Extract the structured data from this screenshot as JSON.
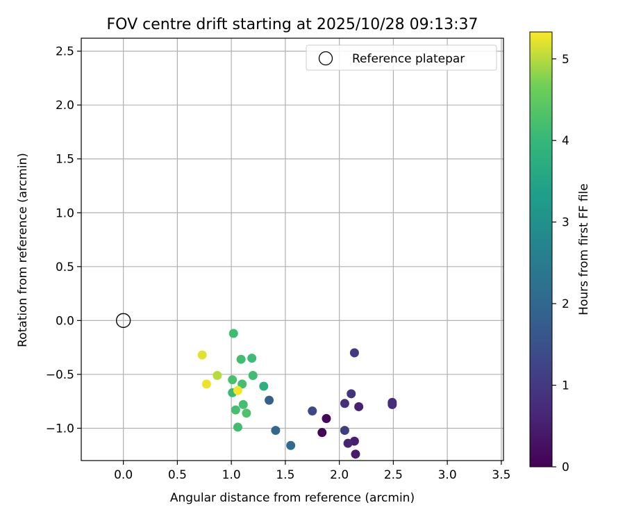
{
  "chart_data": {
    "type": "scatter",
    "title": "FOV centre drift starting at 2025/10/28 09:13:37",
    "xlabel": "Angular distance from reference (arcmin)",
    "ylabel": "Rotation from reference (arcmin)",
    "xlim": [
      -0.39,
      3.52
    ],
    "ylim": [
      -1.3,
      2.62
    ],
    "xticks": [
      0.0,
      0.5,
      1.0,
      1.5,
      2.0,
      2.5,
      3.0,
      3.5
    ],
    "xtick_labels": [
      "0.0",
      "0.5",
      "1.0",
      "1.5",
      "2.0",
      "2.5",
      "3.0",
      "3.5"
    ],
    "yticks": [
      -1.0,
      -0.5,
      0.0,
      0.5,
      1.0,
      1.5,
      2.0,
      2.5
    ],
    "ytick_labels": [
      "−1.0",
      "−0.5",
      "0.0",
      "0.5",
      "1.0",
      "1.5",
      "2.0",
      "2.5"
    ],
    "grid": true,
    "legend": {
      "position": "top-right",
      "entries": [
        "Reference platepar"
      ]
    },
    "reference_point": {
      "x": 0.0,
      "y": 0.0,
      "label": "Reference platepar"
    },
    "colorbar": {
      "label": "Hours from first FF file",
      "min": 0,
      "max": 5.33,
      "ticks": [
        0,
        1,
        2,
        3,
        4,
        5
      ],
      "tick_labels": [
        "0",
        "1",
        "2",
        "3",
        "4",
        "5"
      ],
      "colormap": "viridis"
    },
    "points": [
      {
        "x": 1.84,
        "y": -1.04,
        "hours": 0.05
      },
      {
        "x": 1.88,
        "y": -0.91,
        "hours": 0.1
      },
      {
        "x": 2.15,
        "y": -1.24,
        "hours": 0.45
      },
      {
        "x": 2.14,
        "y": -1.12,
        "hours": 0.5
      },
      {
        "x": 2.08,
        "y": -1.14,
        "hours": 0.6
      },
      {
        "x": 2.18,
        "y": -0.8,
        "hours": 0.55
      },
      {
        "x": 2.49,
        "y": -0.76,
        "hours": 0.7
      },
      {
        "x": 2.49,
        "y": -0.78,
        "hours": 0.75
      },
      {
        "x": 2.05,
        "y": -0.77,
        "hours": 0.8
      },
      {
        "x": 2.11,
        "y": -0.68,
        "hours": 0.9
      },
      {
        "x": 2.05,
        "y": -1.02,
        "hours": 1.1
      },
      {
        "x": 2.14,
        "y": -0.3,
        "hours": 1.0
      },
      {
        "x": 1.75,
        "y": -0.84,
        "hours": 1.3
      },
      {
        "x": 1.35,
        "y": -0.74,
        "hours": 1.8
      },
      {
        "x": 1.41,
        "y": -1.02,
        "hours": 2.0
      },
      {
        "x": 1.55,
        "y": -1.16,
        "hours": 2.05
      },
      {
        "x": 1.3,
        "y": -0.61,
        "hours": 3.8
      },
      {
        "x": 1.02,
        "y": -0.12,
        "hours": 4.1
      },
      {
        "x": 1.09,
        "y": -0.36,
        "hours": 4.15
      },
      {
        "x": 1.19,
        "y": -0.35,
        "hours": 4.1
      },
      {
        "x": 1.2,
        "y": -0.51,
        "hours": 4.15
      },
      {
        "x": 1.1,
        "y": -0.59,
        "hours": 4.2
      },
      {
        "x": 1.01,
        "y": -0.55,
        "hours": 4.25
      },
      {
        "x": 1.01,
        "y": -0.67,
        "hours": 4.05
      },
      {
        "x": 1.11,
        "y": -0.78,
        "hours": 4.2
      },
      {
        "x": 1.04,
        "y": -0.83,
        "hours": 4.2
      },
      {
        "x": 1.14,
        "y": -0.86,
        "hours": 4.3
      },
      {
        "x": 1.06,
        "y": -0.99,
        "hours": 4.15
      },
      {
        "x": 0.87,
        "y": -0.51,
        "hours": 5.0
      },
      {
        "x": 0.73,
        "y": -0.32,
        "hours": 5.2
      },
      {
        "x": 0.77,
        "y": -0.59,
        "hours": 5.25
      },
      {
        "x": 1.06,
        "y": -0.65,
        "hours": 5.3
      }
    ]
  }
}
